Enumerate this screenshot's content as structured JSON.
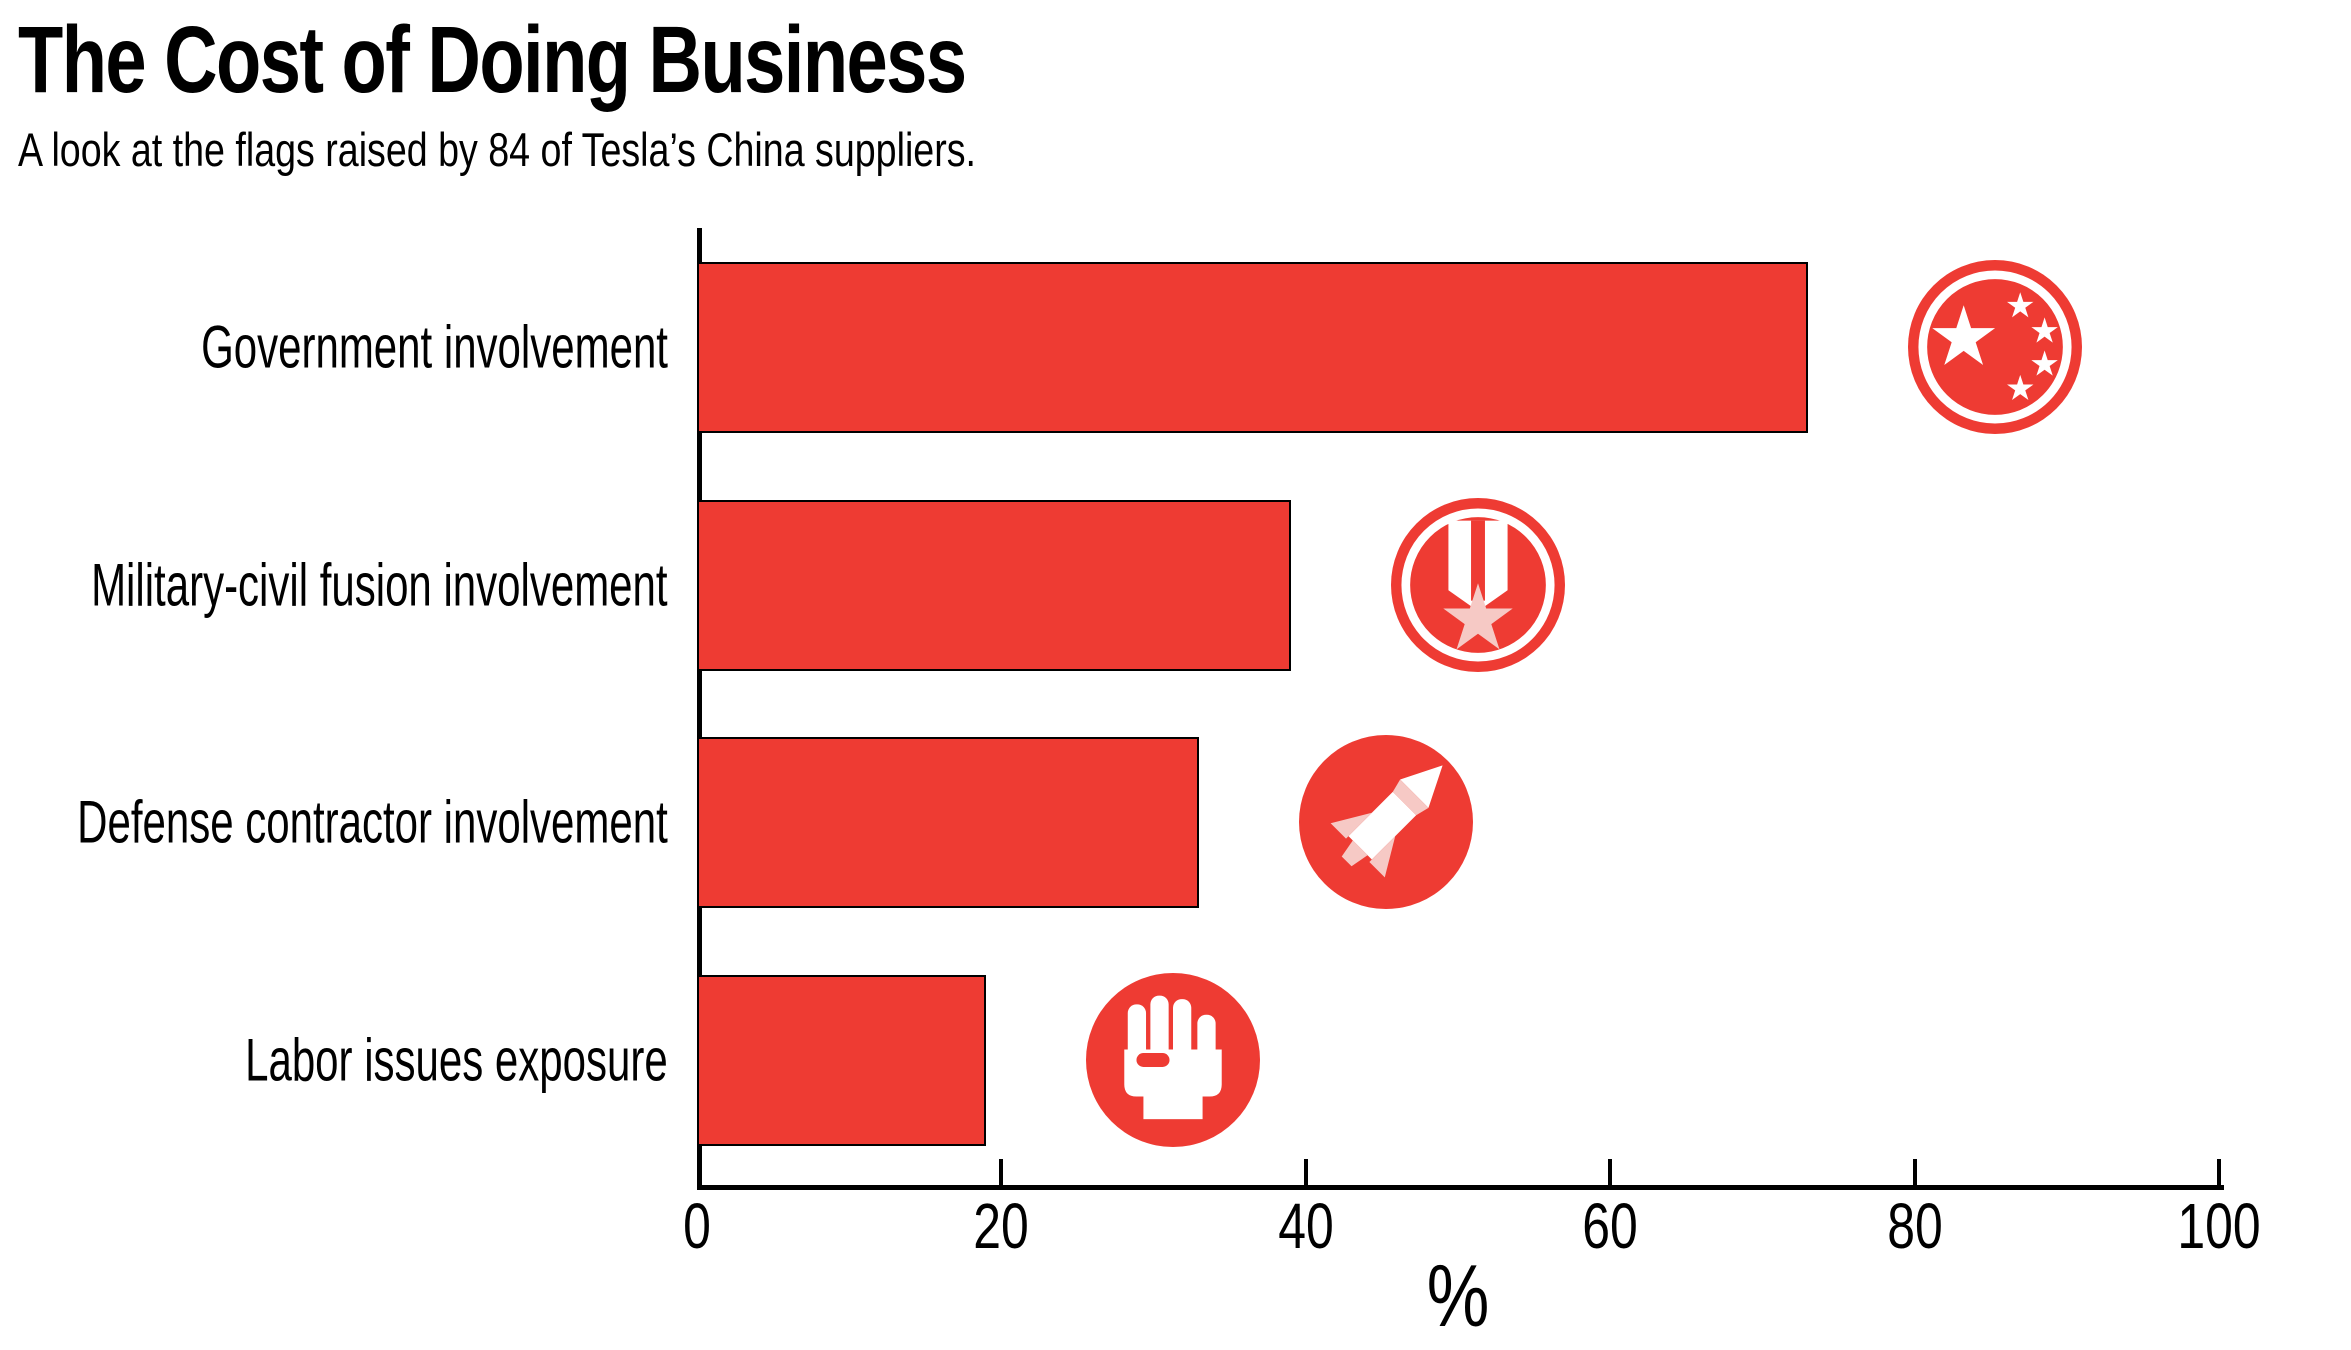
{
  "chart_data": {
    "type": "bar",
    "orientation": "horizontal",
    "title": "The Cost of Doing Business",
    "subtitle": "A look at the flags raised by 84 of Tesla’s China suppliers.",
    "categories": [
      "Government involvement",
      "Military-civil fusion involvement",
      "Defense contractor involvement",
      "Labor issues exposure"
    ],
    "values": [
      73,
      39,
      33,
      19
    ],
    "unit": "%",
    "xlabel": "%",
    "xlim": [
      0,
      100
    ],
    "xticks": [
      0,
      20,
      40,
      60,
      80,
      100
    ],
    "grid": false,
    "legend": "none",
    "icons": [
      "china-flag",
      "military-medal",
      "missile",
      "raised-fist"
    ],
    "colors": {
      "bar": "#EE3B33",
      "bar_border": "#000000",
      "icon_red": "#EE3B33",
      "icon_accent_pink": "#F6C9C5",
      "icon_detail_white": "#FFFFFF",
      "text": "#000000",
      "background": "#FFFFFF"
    }
  }
}
